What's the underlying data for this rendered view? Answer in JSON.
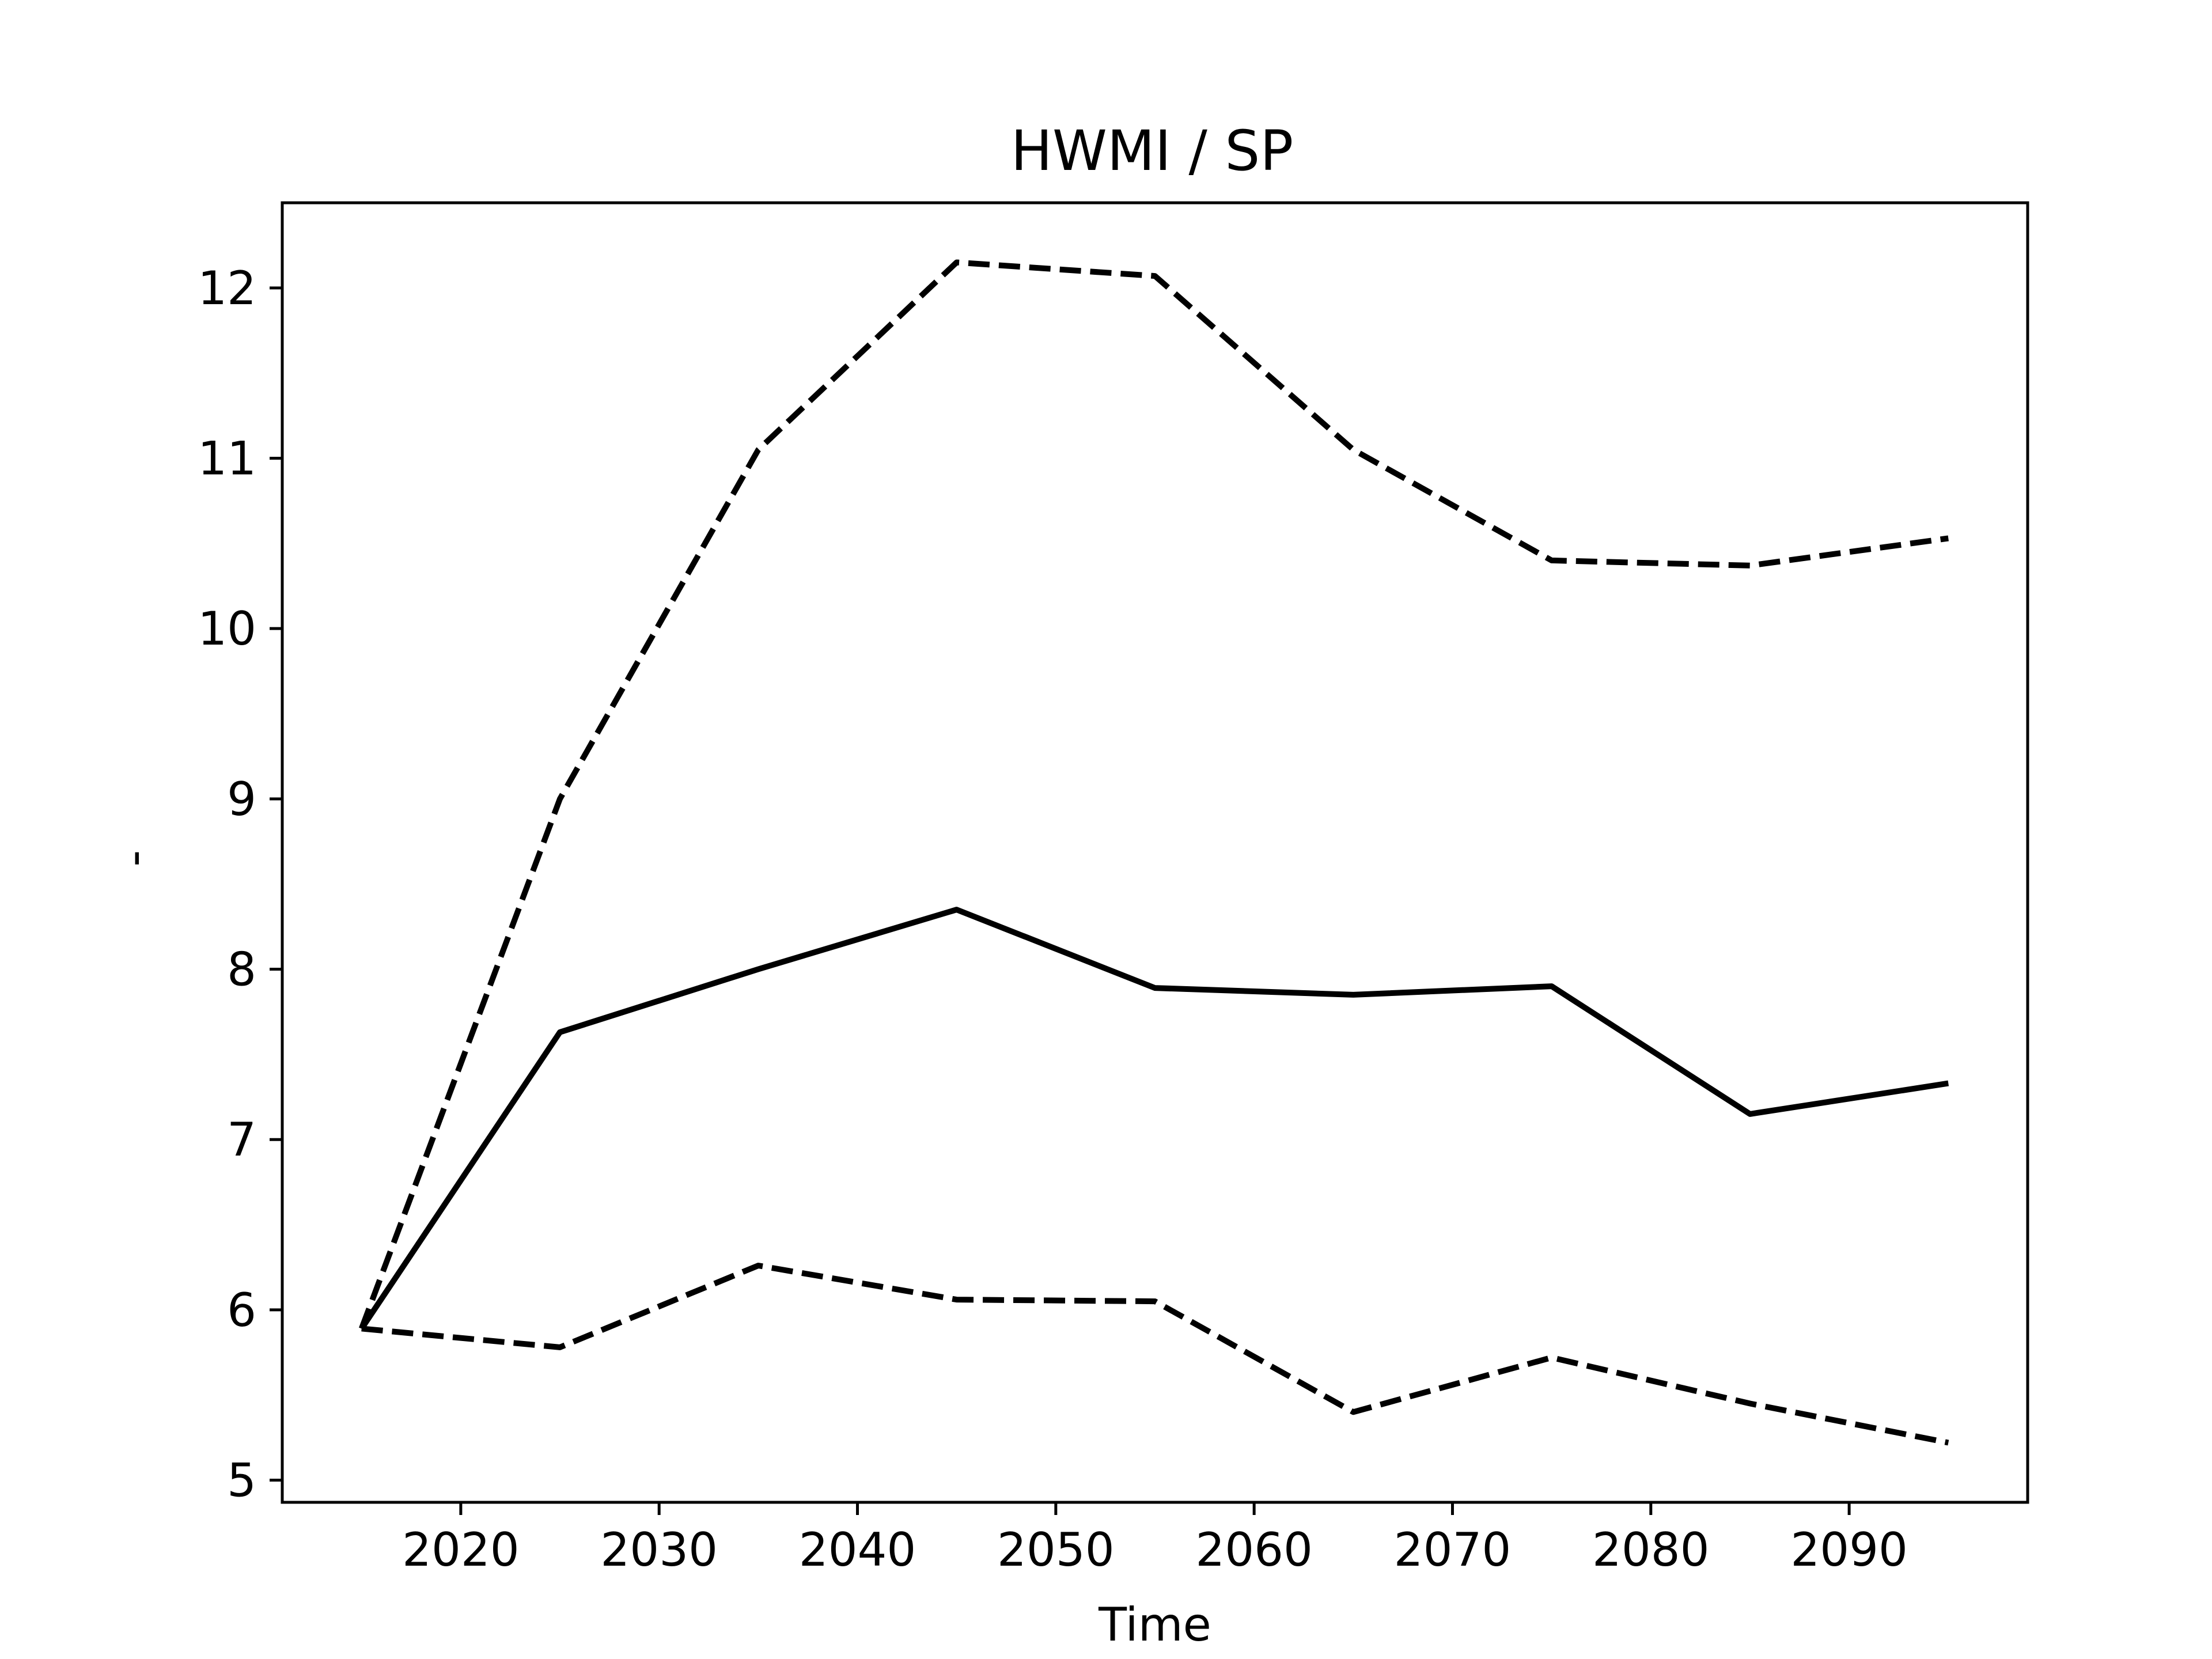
{
  "chart_data": {
    "type": "line",
    "title": "HWMI / SP",
    "xlabel": "Time",
    "ylabel": "-",
    "xlim": [
      2011,
      2099
    ],
    "ylim": [
      4.87,
      12.5
    ],
    "xticks": [
      2020,
      2030,
      2040,
      2050,
      2060,
      2070,
      2080,
      2090
    ],
    "yticks": [
      5,
      6,
      7,
      8,
      9,
      10,
      11,
      12
    ],
    "grid": false,
    "legend": "none",
    "x": [
      2015,
      2025,
      2035,
      2045,
      2055,
      2065,
      2075,
      2085,
      2095
    ],
    "series": [
      {
        "style": "solid",
        "color": "#000000",
        "values": [
          5.89,
          7.63,
          8.0,
          8.35,
          7.89,
          7.85,
          7.9,
          7.15,
          7.33
        ]
      },
      {
        "style": "dashed",
        "color": "#000000",
        "values": [
          5.89,
          9.0,
          11.05,
          12.15,
          12.07,
          11.05,
          10.4,
          10.37,
          10.53
        ]
      },
      {
        "style": "dashed",
        "color": "#000000",
        "values": [
          5.89,
          5.78,
          6.26,
          6.06,
          6.05,
          5.4,
          5.72,
          5.45,
          5.22
        ]
      }
    ]
  }
}
